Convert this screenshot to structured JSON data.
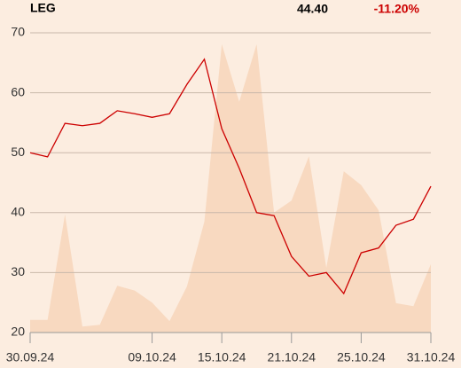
{
  "chart_data": {
    "type": "line",
    "title": "LEG",
    "price": "44.40",
    "change": "-11.20%",
    "change_color": "#cc0000",
    "categories": [
      "30.09.24",
      null,
      null,
      null,
      null,
      null,
      null,
      "09.10.24",
      null,
      null,
      null,
      "15.10.24",
      null,
      null,
      null,
      "21.10.24",
      null,
      null,
      null,
      "25.10.24",
      null,
      null,
      null,
      "31.10.24"
    ],
    "series": [
      {
        "color": "#cc0000",
        "values": [
          50.0,
          49.3,
          54.9,
          54.5,
          54.9,
          57.0,
          56.5,
          55.9,
          56.5,
          61.4,
          65.6,
          54.0,
          47.4,
          40.0,
          39.5,
          32.7,
          29.4,
          30.0,
          26.5,
          33.3,
          34.1,
          37.9,
          38.9,
          44.4
        ]
      },
      {
        "color": "#f8d9c0",
        "area": true,
        "values": [
          22.1,
          22.1,
          39.7,
          21.0,
          21.3,
          27.8,
          27.0,
          25.0,
          21.9,
          27.7,
          38.5,
          68.1,
          58.5,
          68.1,
          40.0,
          42.0,
          49.4,
          30.8,
          46.9,
          44.6,
          40.4,
          24.9,
          24.4,
          31.4
        ]
      }
    ],
    "ylim": [
      20,
      70
    ],
    "yticks": [
      20,
      30,
      40,
      50,
      60,
      70
    ],
    "grid": true
  }
}
